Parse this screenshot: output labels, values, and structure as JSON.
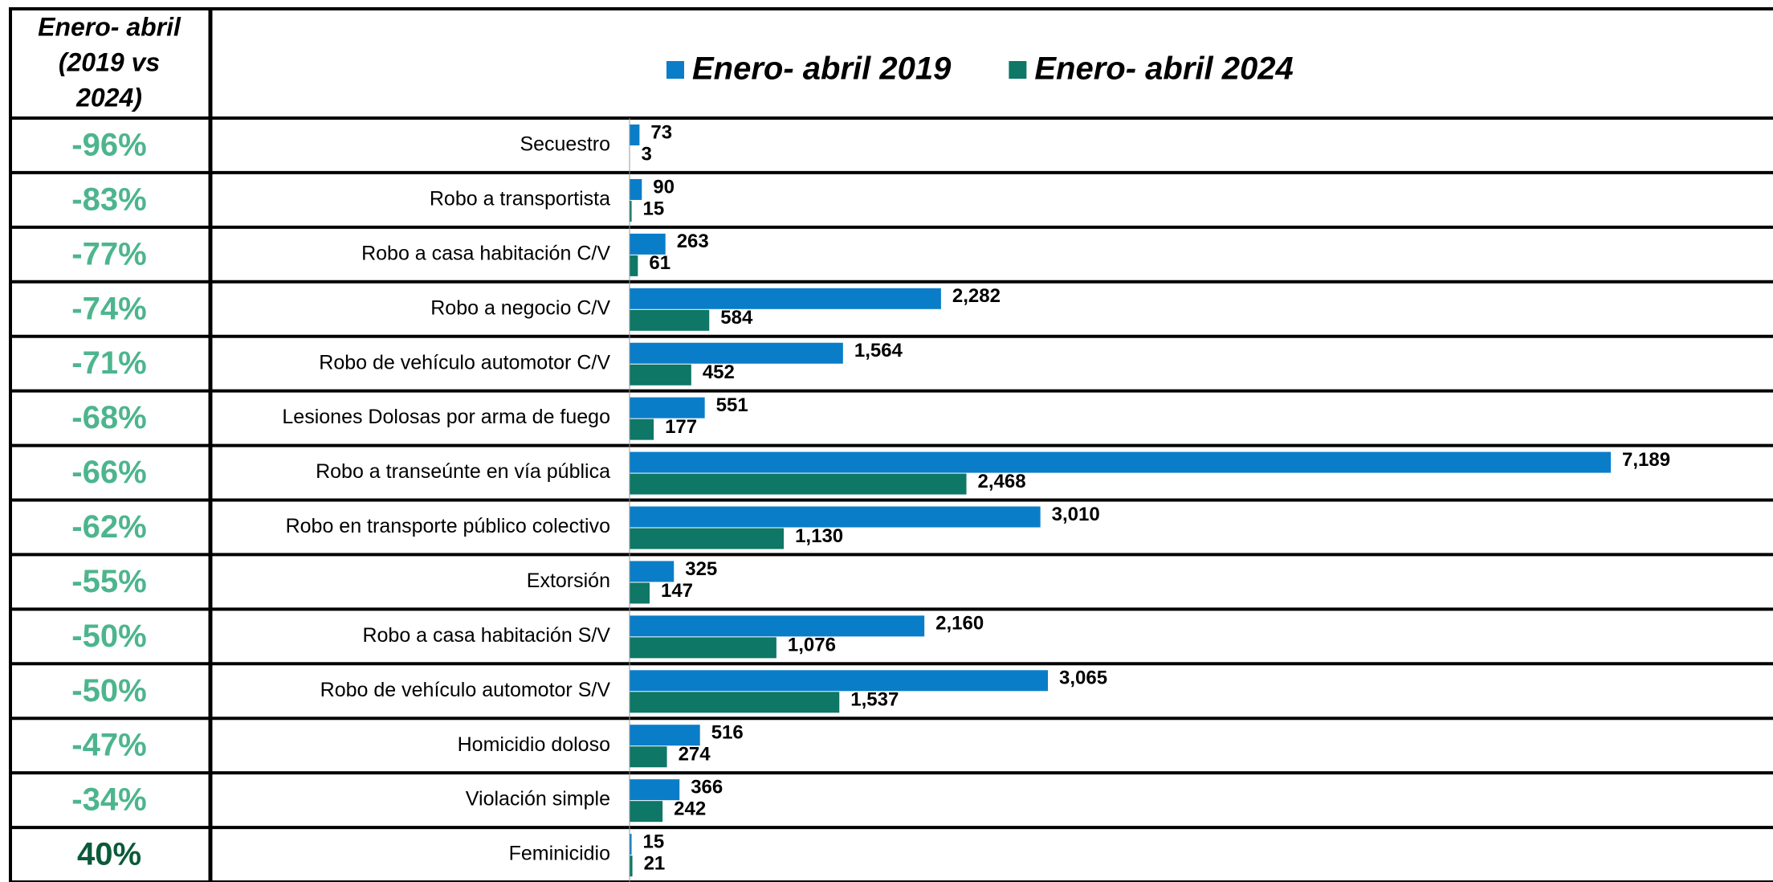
{
  "chart_data": {
    "type": "barh",
    "table": {
      "header": [
        "Enero- abril",
        "(2019 vs",
        "2024)"
      ],
      "rows": [
        {
          "value": -96,
          "label": "-96%"
        },
        {
          "value": -83,
          "label": "-83%"
        },
        {
          "value": -77,
          "label": "-77%"
        },
        {
          "value": -74,
          "label": "-74%"
        },
        {
          "value": -71,
          "label": "-71%"
        },
        {
          "value": -68,
          "label": "-68%"
        },
        {
          "value": -66,
          "label": "-66%"
        },
        {
          "value": -62,
          "label": "-62%"
        },
        {
          "value": -55,
          "label": "-55%"
        },
        {
          "value": -50,
          "label": "-50%"
        },
        {
          "value": -50,
          "label": "-50%"
        },
        {
          "value": -47,
          "label": "-47%"
        },
        {
          "value": -34,
          "label": "-34%"
        },
        {
          "value": 40,
          "label": "40%"
        }
      ]
    },
    "categories": [
      "Secuestro",
      "Robo a transportista",
      "Robo a casa habitación C/V",
      "Robo a negocio C/V",
      "Robo de vehículo automotor C/V",
      "Lesiones Dolosas por arma de fuego",
      "Robo a transeúnte en vía pública",
      "Robo en transporte público colectivo",
      "Extorsión",
      "Robo a casa habitación S/V",
      "Robo de vehículo automotor S/V",
      "Homicidio doloso",
      "Violación simple",
      "Feminicidio"
    ],
    "series": [
      {
        "name": "Enero- abril 2019",
        "color": "#0a7dc9",
        "values": [
          73,
          90,
          263,
          2282,
          1564,
          551,
          7189,
          3010,
          325,
          2160,
          3065,
          516,
          366,
          15
        ],
        "value_labels": [
          "73",
          "90",
          "263",
          "2,282",
          "1,564",
          "551",
          "7,189",
          "3,010",
          "325",
          "2,160",
          "3,065",
          "516",
          "366",
          "15"
        ]
      },
      {
        "name": "Enero- abril 2024",
        "color": "#0e7766",
        "values": [
          3,
          15,
          61,
          584,
          452,
          177,
          2468,
          1130,
          147,
          1076,
          1537,
          274,
          242,
          21
        ],
        "value_labels": [
          "3",
          "15",
          "61",
          "584",
          "452",
          "177",
          "2,468",
          "1,130",
          "147",
          "1,076",
          "1,537",
          "274",
          "242",
          "21"
        ]
      }
    ]
  }
}
